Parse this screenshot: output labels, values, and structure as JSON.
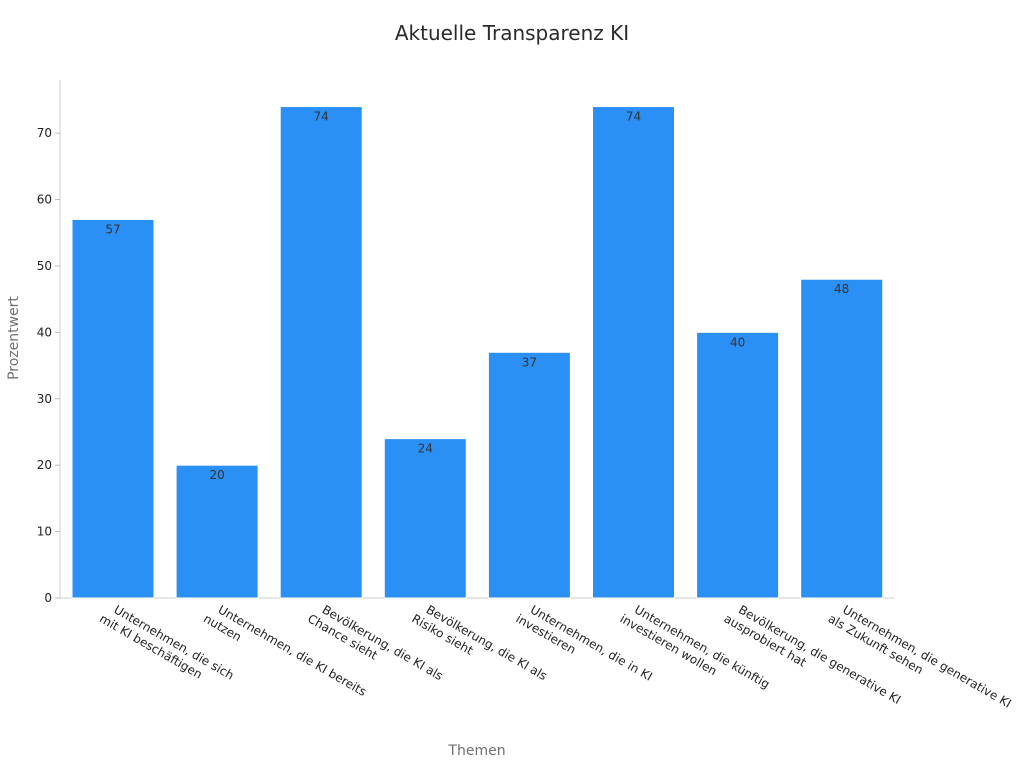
{
  "chart_data": {
    "type": "bar",
    "title": "Aktuelle Transparenz KI",
    "xlabel": "Themen",
    "ylabel": "Prozentwert",
    "categories": [
      [
        "Unternehmen, die sich",
        "mit KI beschäftigen"
      ],
      [
        "Unternehmen, die KI bereits",
        "nutzen"
      ],
      [
        "Bevölkerung, die KI als",
        "Chance sieht"
      ],
      [
        "Bevölkerung, die KI als",
        "Risiko sieht"
      ],
      [
        "Unternehmen, die in KI",
        "investieren"
      ],
      [
        "Unternehmen, die künftig",
        "investieren wollen"
      ],
      [
        "Bevölkerung, die generative KI",
        "ausprobiert hat"
      ],
      [
        "Unternehmen, die generative KI",
        "als Zukunft sehen"
      ]
    ],
    "values": [
      57,
      20,
      74,
      24,
      37,
      74,
      40,
      48
    ],
    "ylim": [
      0,
      78
    ],
    "yticks": [
      0,
      10,
      20,
      30,
      40,
      50,
      60,
      70
    ],
    "bar_color": "#2b90f5",
    "grid": false,
    "legend": "none"
  }
}
